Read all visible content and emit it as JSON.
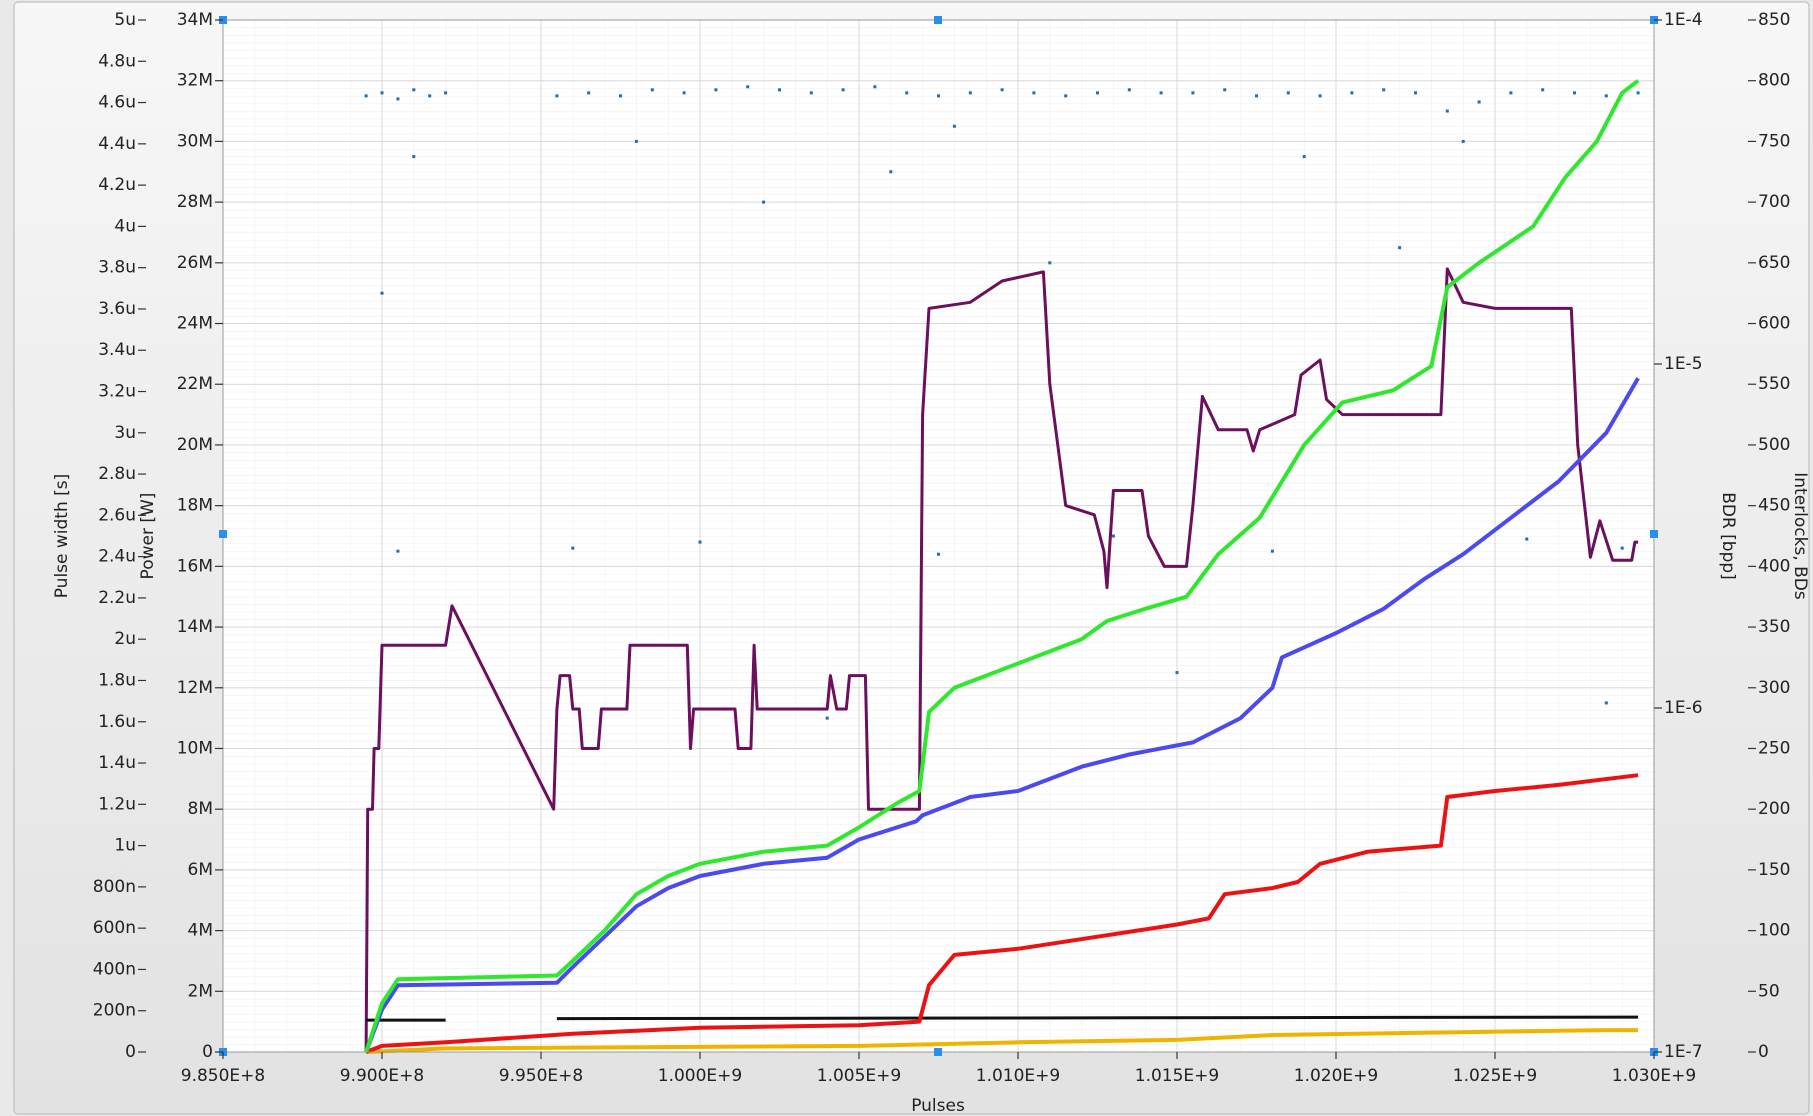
{
  "chart_data": {
    "type": "multi-axis",
    "xlabel": "Pulses",
    "ylabel": "Power [W]",
    "y2label": "Interlocks, BDs",
    "y3label": "Pulse width [s]",
    "y4label": "BDR [bpp]",
    "xlim": [
      985000000,
      1030000000
    ],
    "xticks": [
      {
        "value": 985000000,
        "label": "9.850E+8"
      },
      {
        "value": 990000000,
        "label": "9.900E+8"
      },
      {
        "value": 995000000,
        "label": "9.950E+8"
      },
      {
        "value": 1000000000,
        "label": "1.000E+9"
      },
      {
        "value": 1005000000,
        "label": "1.005E+9"
      },
      {
        "value": 1010000000,
        "label": "1.010E+9"
      },
      {
        "value": 1015000000,
        "label": "1.015E+9"
      },
      {
        "value": 1020000000,
        "label": "1.020E+9"
      },
      {
        "value": 1025000000,
        "label": "1.025E+9"
      },
      {
        "value": 1030000000,
        "label": "1.030E+9"
      }
    ],
    "ylim": [
      0,
      34000000
    ],
    "yticks": [
      0,
      {
        "value": 2000000,
        "label": "2M"
      },
      {
        "value": 4000000,
        "label": "4M"
      },
      {
        "value": 6000000,
        "label": "6M"
      },
      {
        "value": 8000000,
        "label": "8M"
      },
      {
        "value": 10000000,
        "label": "10M"
      },
      {
        "value": 12000000,
        "label": "12M"
      },
      {
        "value": 14000000,
        "label": "14M"
      },
      {
        "value": 16000000,
        "label": "16M"
      },
      {
        "value": 18000000,
        "label": "18M"
      },
      {
        "value": 20000000,
        "label": "20M"
      },
      {
        "value": 22000000,
        "label": "22M"
      },
      {
        "value": 24000000,
        "label": "24M"
      },
      {
        "value": 26000000,
        "label": "26M"
      },
      {
        "value": 28000000,
        "label": "28M"
      },
      {
        "value": 30000000,
        "label": "30M"
      },
      {
        "value": 32000000,
        "label": "32M"
      },
      {
        "value": 34000000,
        "label": "34M"
      }
    ],
    "y2lim": [
      0,
      850
    ],
    "y2ticks": [
      0,
      50,
      100,
      150,
      200,
      250,
      300,
      350,
      400,
      450,
      500,
      550,
      600,
      650,
      700,
      750,
      800,
      850
    ],
    "y3lim": [
      0,
      5e-06
    ],
    "y3ticks": [
      0,
      {
        "value": 2e-07,
        "label": "200n"
      },
      {
        "value": 4e-07,
        "label": "400n"
      },
      {
        "value": 6e-07,
        "label": "600n"
      },
      {
        "value": 8e-07,
        "label": "800n"
      },
      {
        "value": 1e-06,
        "label": "1u"
      },
      {
        "value": 1.2e-06,
        "label": "1.2u"
      },
      {
        "value": 1.4e-06,
        "label": "1.4u"
      },
      {
        "value": 1.6e-06,
        "label": "1.6u"
      },
      {
        "value": 1.8e-06,
        "label": "1.8u"
      },
      {
        "value": 2e-06,
        "label": "2u"
      },
      {
        "value": 2.2e-06,
        "label": "2.2u"
      },
      {
        "value": 2.4e-06,
        "label": "2.4u"
      },
      {
        "value": 2.6e-06,
        "label": "2.6u"
      },
      {
        "value": 2.8e-06,
        "label": "2.8u"
      },
      {
        "value": 3e-06,
        "label": "3u"
      },
      {
        "value": 3.2e-06,
        "label": "3.2u"
      },
      {
        "value": 3.4e-06,
        "label": "3.4u"
      },
      {
        "value": 3.6e-06,
        "label": "3.6u"
      },
      {
        "value": 3.8e-06,
        "label": "3.8u"
      },
      {
        "value": 4e-06,
        "label": "4u"
      },
      {
        "value": 4.2e-06,
        "label": "4.2u"
      },
      {
        "value": 4.4e-06,
        "label": "4.4u"
      },
      {
        "value": 4.6e-06,
        "label": "4.6u"
      },
      {
        "value": 4.8e-06,
        "label": "4.8u"
      },
      {
        "value": 5e-06,
        "label": "5u"
      }
    ],
    "y4lim": [
      1e-07,
      0.0001
    ],
    "y4log": true,
    "y4ticks": [
      {
        "value": 1e-07,
        "label": "1E-7"
      },
      {
        "value": 1e-06,
        "label": "1E-6"
      },
      {
        "value": 1e-05,
        "label": "1E-5"
      },
      {
        "value": 0.0001,
        "label": "1E-4"
      }
    ],
    "grid": true,
    "series": [
      {
        "type": "scatter",
        "axis": "y",
        "color": "#1f6fa8",
        "x": [
          989500000,
          990000000,
          990500000,
          991000000,
          991500000,
          992000000,
          995500000,
          996500000,
          997500000,
          998500000,
          999500000,
          1000500000,
          1001500000,
          1002500000,
          1003500000,
          1004500000,
          1005500000,
          1006500000,
          1007500000,
          1008500000,
          1009500000,
          1010500000,
          1011500000,
          1012500000,
          1013500000,
          1014500000,
          1015500000,
          1016500000,
          1017500000,
          1018500000,
          1019500000,
          1020500000,
          1021500000,
          1022500000,
          1023500000,
          1024500000,
          1025500000,
          1026500000,
          1027500000,
          1028500000,
          1029500000,
          990000000,
          990500000,
          991000000,
          996000000,
          998000000,
          1000000000,
          1002000000,
          1004000000,
          1006000000,
          1007500000,
          1008000000,
          1011000000,
          1013000000,
          1015000000,
          1018000000,
          1019000000,
          1022000000,
          1024000000,
          1026000000,
          1028500000,
          1029000000
        ],
        "values": [
          31500000,
          31600000,
          31400000,
          31700000,
          31500000,
          31600000,
          31500000,
          31600000,
          31500000,
          31700000,
          31600000,
          31700000,
          31800000,
          31700000,
          31600000,
          31700000,
          31800000,
          31600000,
          31500000,
          31600000,
          31700000,
          31600000,
          31500000,
          31600000,
          31700000,
          31600000,
          31600000,
          31700000,
          31500000,
          31600000,
          31500000,
          31600000,
          31700000,
          31600000,
          31000000,
          31300000,
          31600000,
          31700000,
          31600000,
          31500000,
          31600000,
          25000000,
          16500000,
          29500000,
          16600000,
          30000000,
          16800000,
          28000000,
          11000000,
          29000000,
          16400000,
          30500000,
          26000000,
          17000000,
          12500000,
          16500000,
          29500000,
          26500000,
          30000000,
          16900000,
          11500000,
          16600000
        ]
      },
      {
        "type": "line",
        "axis": "y",
        "color": "#6b0f5e",
        "x": [
          989500000,
          989550000,
          989700000,
          989750000,
          989900000,
          990000000,
          992000000,
          992200000,
          995400000,
          995500000,
          995600000,
          995900000,
          996000000,
          996200000,
          996300000,
          996800000,
          996900000,
          997700000,
          997800000,
          999600000,
          999700000,
          999800000,
          1001100000,
          1001200000,
          1001600000,
          1001700000,
          1001800000,
          1004000000,
          1004100000,
          1004300000,
          1004600000,
          1004700000,
          1005200000,
          1005300000,
          1006900000,
          1007000000,
          1007200000,
          1008500000,
          1009500000,
          1010800000,
          1011000000,
          1011500000,
          1012400000,
          1012700000,
          1012800000,
          1013000000,
          1013900000,
          1014100000,
          1014600000,
          1015300000,
          1015500000,
          1015800000,
          1016300000,
          1017200000,
          1017400000,
          1017600000,
          1018700000,
          1018900000,
          1019500000,
          1019700000,
          1020200000,
          1023300000,
          1023500000,
          1024000000,
          1025000000,
          1027400000,
          1027600000,
          1028000000,
          1028300000,
          1028700000,
          1029300000,
          1029400000,
          1029500000
        ],
        "values": [
          0,
          8000000,
          8000000,
          10000000,
          10000000,
          13400000,
          13400000,
          14700000,
          8000000,
          11300000,
          12400000,
          12400000,
          11300000,
          11300000,
          10000000,
          10000000,
          11300000,
          11300000,
          13400000,
          13400000,
          10000000,
          11300000,
          11300000,
          10000000,
          10000000,
          13400000,
          11300000,
          11300000,
          12400000,
          11300000,
          11300000,
          12400000,
          12400000,
          8000000,
          8000000,
          21000000,
          24500000,
          24700000,
          25400000,
          25700000,
          22000000,
          18000000,
          17700000,
          16500000,
          15300000,
          18500000,
          18500000,
          17000000,
          16000000,
          16000000,
          18000000,
          21600000,
          20500000,
          20500000,
          19800000,
          20500000,
          21000000,
          22300000,
          22800000,
          21500000,
          21000000,
          21000000,
          25800000,
          24700000,
          24500000,
          24500000,
          20000000,
          16300000,
          17500000,
          16200000,
          16200000,
          16800000,
          16800000
        ]
      },
      {
        "type": "line",
        "axis": "y",
        "color": "#111111",
        "x": [
          989500000,
          992000000,
          993000000,
          995500000,
          1029500000
        ],
        "values": [
          1050000,
          1050000,
          null,
          1100000,
          1150000
        ]
      },
      {
        "type": "line",
        "axis": "y2",
        "color": "#f0b400",
        "x": [
          989500000,
          992000000,
          1005000000,
          1010000000,
          1015000000,
          1018000000,
          1023000000,
          1028500000,
          1029500000
        ],
        "values": [
          0,
          3,
          5,
          8,
          10,
          14,
          16,
          18,
          18
        ]
      },
      {
        "type": "line",
        "axis": "y2",
        "color": "#ee1111",
        "x": [
          989500000,
          990000000,
          992000000,
          996000000,
          1000000000,
          1005000000,
          1006900000,
          1007200000,
          1008000000,
          1010000000,
          1012500000,
          1015000000,
          1016000000,
          1016500000,
          1018000000,
          1018800000,
          1019500000,
          1021000000,
          1023300000,
          1023500000,
          1025000000,
          1027000000,
          1029500000
        ],
        "values": [
          0,
          5,
          8,
          15,
          20,
          22,
          25,
          55,
          80,
          85,
          95,
          105,
          110,
          130,
          135,
          140,
          155,
          165,
          170,
          210,
          215,
          220,
          228
        ]
      },
      {
        "type": "line",
        "axis": "y2",
        "color": "#4a4af0",
        "x": [
          989500000,
          990000000,
          990500000,
          995500000,
          996000000,
          997000000,
          998000000,
          999000000,
          1000000000,
          1002000000,
          1004000000,
          1005000000,
          1006800000,
          1007000000,
          1008500000,
          1010000000,
          1012000000,
          1013500000,
          1015500000,
          1017000000,
          1018000000,
          1018300000,
          1020000000,
          1021500000,
          1022800000,
          1024000000,
          1025500000,
          1027000000,
          1028500000,
          1029500000
        ],
        "values": [
          0,
          35,
          55,
          57,
          70,
          95,
          120,
          135,
          145,
          155,
          160,
          175,
          190,
          195,
          210,
          215,
          235,
          245,
          255,
          275,
          300,
          325,
          345,
          365,
          390,
          410,
          440,
          470,
          510,
          555
        ]
      },
      {
        "type": "line",
        "axis": "y2",
        "color": "#2ee82e",
        "x": [
          989500000,
          990000000,
          990500000,
          995500000,
          996000000,
          997000000,
          998000000,
          999000000,
          1000000000,
          1002000000,
          1004000000,
          1005000000,
          1006200000,
          1006900000,
          1007200000,
          1008000000,
          1010000000,
          1012000000,
          1012800000,
          1014000000,
          1015300000,
          1016300000,
          1017600000,
          1018300000,
          1019000000,
          1020200000,
          1021800000,
          1023000000,
          1023500000,
          1024500000,
          1026200000,
          1027200000,
          1028200000,
          1029000000,
          1029500000
        ],
        "values": [
          0,
          40,
          60,
          63,
          75,
          100,
          130,
          145,
          155,
          165,
          170,
          185,
          205,
          215,
          280,
          300,
          320,
          340,
          355,
          365,
          375,
          410,
          440,
          470,
          500,
          535,
          545,
          565,
          630,
          650,
          680,
          720,
          750,
          790,
          800
        ]
      }
    ]
  }
}
